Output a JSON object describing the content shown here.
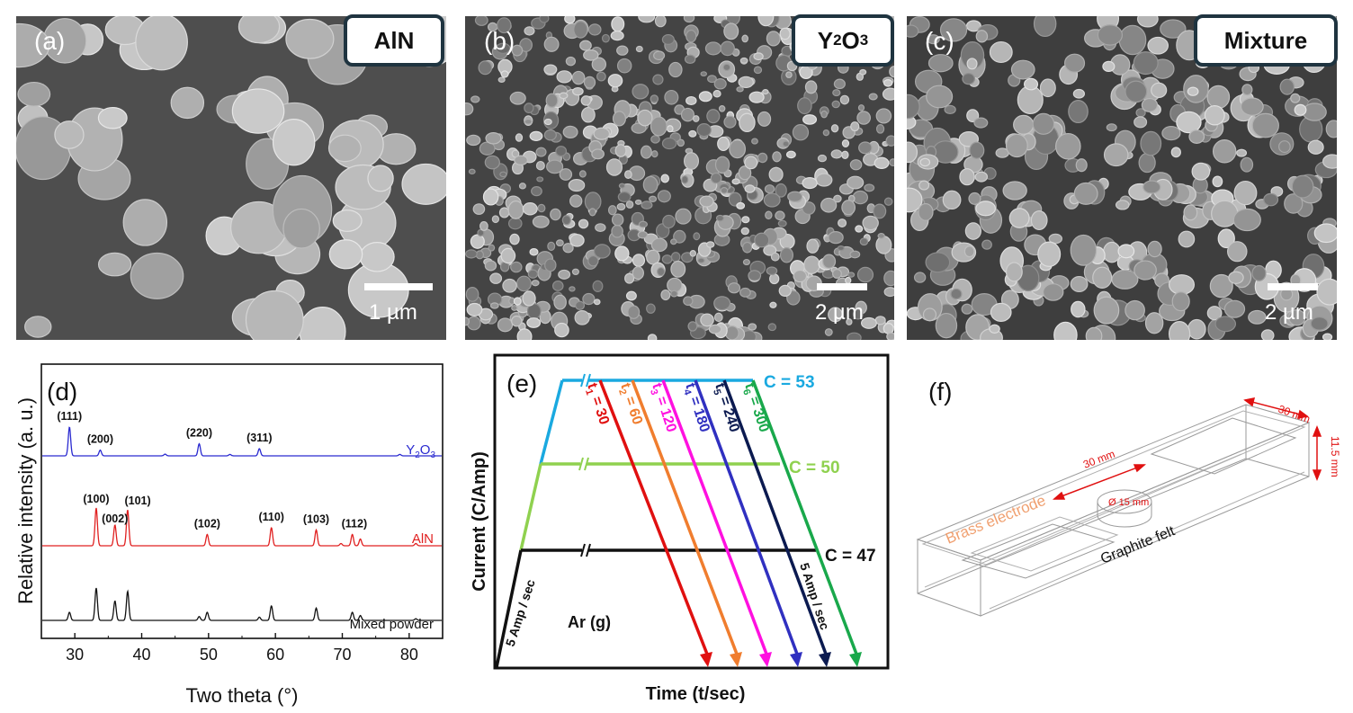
{
  "panels": {
    "a": {
      "letter": "(a)",
      "tag": "AlN",
      "scale": "1 µm"
    },
    "b": {
      "letter": "(b)",
      "tag_main": "Y",
      "tag_sub1": "2",
      "tag_mid": "O",
      "tag_sub2": "3",
      "scale": "2 µm"
    },
    "c": {
      "letter": "(c)",
      "tag": "Mixture",
      "scale": "2 µm"
    },
    "d": {
      "letter": "(d)"
    },
    "e": {
      "letter": "(e)"
    },
    "f": {
      "letter": "(f)"
    }
  },
  "chart_data": [
    {
      "type": "line",
      "xlabel": "Two theta (°)",
      "ylabel": "Relative intensity (a. u.)",
      "xlim": [
        25,
        85
      ],
      "xticks": [
        "30",
        "40",
        "50",
        "60",
        "70",
        "80"
      ],
      "series": [
        {
          "name": "Y2O3",
          "label_main": "Y",
          "label_sub1": "2",
          "label_mid": "O",
          "label_sub2": "3",
          "color": "#2a2ad0",
          "peaks": [
            [
              29.2,
              1.0
            ],
            [
              33.8,
              0.2
            ],
            [
              48.6,
              0.42
            ],
            [
              57.6,
              0.25
            ],
            [
              43.5,
              0.06
            ],
            [
              53.2,
              0.05
            ],
            [
              78.6,
              0.05
            ]
          ],
          "annotations": [
            {
              "text": "(111)",
              "x": 29.2
            },
            {
              "text": "(200)",
              "x": 33.8
            },
            {
              "text": "(220)",
              "x": 48.6
            },
            {
              "text": "(311)",
              "x": 57.6
            }
          ]
        },
        {
          "name": "AlN",
          "color": "#e02020",
          "peaks": [
            [
              33.2,
              1.0
            ],
            [
              36.0,
              0.55
            ],
            [
              37.9,
              0.95
            ],
            [
              49.8,
              0.3
            ],
            [
              59.4,
              0.48
            ],
            [
              66.1,
              0.42
            ],
            [
              69.8,
              0.06
            ],
            [
              71.5,
              0.3
            ],
            [
              72.7,
              0.18
            ],
            [
              81.0,
              0.06
            ]
          ],
          "annotations": [
            {
              "text": "(100)",
              "x": 33.2
            },
            {
              "text": "(002)",
              "x": 36.0
            },
            {
              "text": "(101)",
              "x": 38.6
            },
            {
              "text": "(102)",
              "x": 49.8
            },
            {
              "text": "(110)",
              "x": 59.4
            },
            {
              "text": "(103)",
              "x": 66.1
            },
            {
              "text": "(112)",
              "x": 71.8
            }
          ]
        },
        {
          "name": "Mixed powder",
          "color": "#111111",
          "peaks": [
            [
              29.2,
              0.25
            ],
            [
              33.2,
              1.0
            ],
            [
              36.0,
              0.6
            ],
            [
              37.9,
              0.9
            ],
            [
              48.6,
              0.12
            ],
            [
              49.8,
              0.25
            ],
            [
              57.6,
              0.1
            ],
            [
              59.4,
              0.45
            ],
            [
              66.1,
              0.38
            ],
            [
              71.5,
              0.25
            ],
            [
              72.7,
              0.15
            ],
            [
              81.0,
              0.05
            ]
          ]
        }
      ]
    },
    {
      "type": "line",
      "xlabel": "Time (t/sec)",
      "ylabel": "Current (C/Amp)",
      "levels": [
        {
          "label": "C = 53",
          "color": "#1aa9e0"
        },
        {
          "label": "C = 50",
          "color": "#8fd14f"
        },
        {
          "label": "C = 47",
          "color": "#111111"
        }
      ],
      "ramps": [
        {
          "label_pre": "t",
          "label_sub": "1",
          "label_post": " = 30",
          "color": "#e01010"
        },
        {
          "label_pre": "t",
          "label_sub": "2",
          "label_post": " = 60",
          "color": "#f07d2e"
        },
        {
          "label_pre": "t",
          "label_sub": "3",
          "label_post": " = 120",
          "color": "#ff10e0"
        },
        {
          "label_pre": "t",
          "label_sub": "4",
          "label_post": " = 180",
          "color": "#3030c0"
        },
        {
          "label_pre": "t",
          "label_sub": "5",
          "label_post": " = 240",
          "color": "#0b1a50"
        },
        {
          "label_pre": "t",
          "label_sub": "6",
          "label_post": " = 300",
          "color": "#19a84b"
        }
      ],
      "ramp_up_label": "5 Amp / sec",
      "ramp_down_label": "5 Amp / sec",
      "atmosphere": "Ar (g)"
    }
  ],
  "schematic": {
    "dim_top": "30 mm",
    "dim_height": "11.5 mm",
    "dim_mid": "30 mm",
    "dim_hole": "Ø 15 mm",
    "brass_label": "Brass electrode",
    "felt_label": "Graphite felt",
    "colors": {
      "dimension": "#e01010",
      "brass": "#f0a070"
    }
  }
}
